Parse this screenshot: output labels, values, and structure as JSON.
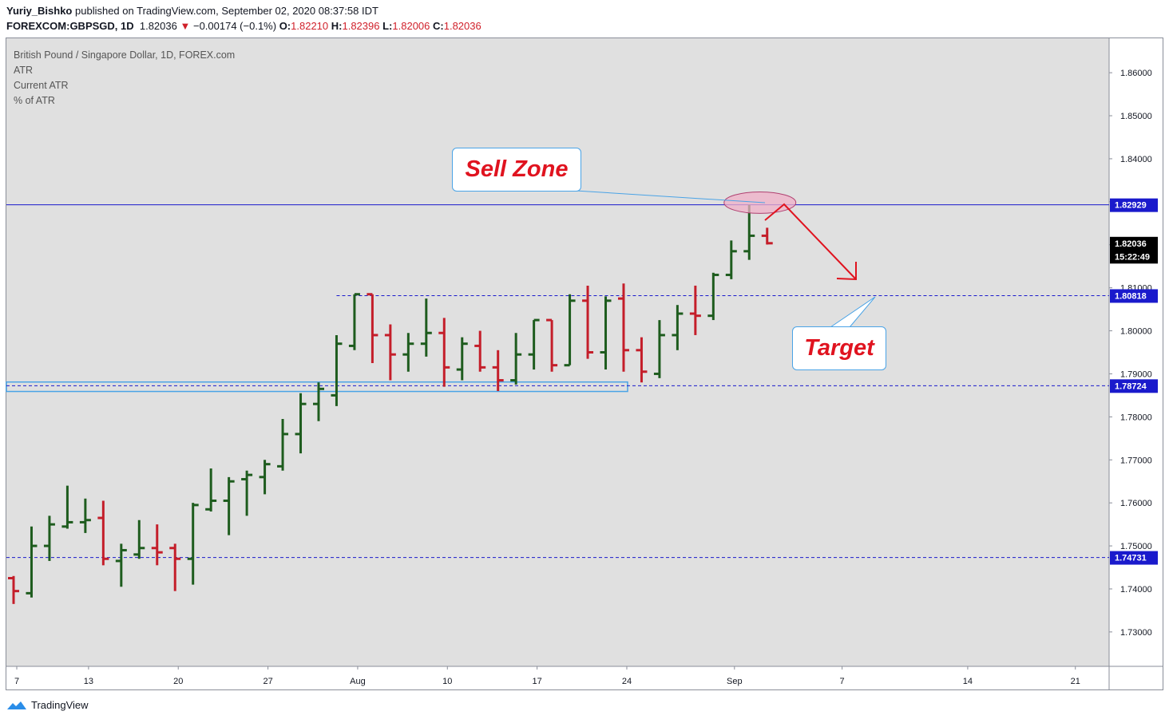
{
  "header": {
    "author": "Yuriy_Bishko",
    "published": "published on TradingView.com, September 02, 2020 08:37:58 IDT",
    "symbol": "FOREXCOM:GBPSGD, 1D",
    "last": "1.82036",
    "change_arrow": "▼",
    "change": "−0.00174 (−0.1%)",
    "o_label": "O:",
    "o": "1.82210",
    "h_label": "H:",
    "h": "1.82396",
    "l_label": "L:",
    "l": "1.82006",
    "c_label": "C:",
    "c": "1.82036"
  },
  "legend": {
    "title": "British Pound / Singapore Dollar, 1D, FOREX.com",
    "line1": "ATR",
    "line2": "Current ATR",
    "line3": "% of ATR"
  },
  "annotations": {
    "sell_zone": "Sell Zone",
    "target": "Target"
  },
  "footer": {
    "brand": "TradingView",
    "logo_icon": "tradingview-logo-icon"
  },
  "colors": {
    "up": "#1e5c1e",
    "down": "#c41e2a",
    "level_line": "#1a1acc",
    "axis_badge": "#1a1acc",
    "accent_red": "#e0131f",
    "chart_bg": "#e0e0e0"
  },
  "chart_data": {
    "type": "ohlc",
    "title": "British Pound / Singapore Dollar, 1D, FOREX.com",
    "ylim": [
      1.722,
      1.868
    ],
    "y_ticks": [
      "1.86000",
      "1.85000",
      "1.84000",
      "1.83000",
      "1.82000",
      "1.81000",
      "1.80000",
      "1.79000",
      "1.78000",
      "1.77000",
      "1.76000",
      "1.75000",
      "1.74000",
      "1.73000"
    ],
    "x_ticks": [
      {
        "label": "7",
        "bar": 0
      },
      {
        "label": "13",
        "bar": 4
      },
      {
        "label": "20",
        "bar": 9
      },
      {
        "label": "27",
        "bar": 14
      },
      {
        "label": "Aug",
        "bar": 19
      },
      {
        "label": "10",
        "bar": 24
      },
      {
        "label": "17",
        "bar": 29
      },
      {
        "label": "24",
        "bar": 34
      },
      {
        "label": "Sep",
        "bar": 40
      },
      {
        "label": "7",
        "bar": 46
      },
      {
        "label": "14",
        "bar": 53
      },
      {
        "label": "21",
        "bar": 59
      }
    ],
    "price_labels": [
      {
        "value": 1.82929,
        "text": "1.82929",
        "style": "blue"
      },
      {
        "value": 1.82036,
        "text": "1.82036",
        "style": "black"
      },
      {
        "value": 1.8173,
        "text": "15:22:49",
        "style": "black"
      },
      {
        "value": 1.80818,
        "text": "1.80818",
        "style": "blue"
      },
      {
        "value": 1.78724,
        "text": "1.78724",
        "style": "blue"
      },
      {
        "value": 1.74731,
        "text": "1.74731",
        "style": "blue"
      }
    ],
    "levels": [
      {
        "value": 1.82929,
        "style": "solid"
      },
      {
        "value": 1.80818,
        "style": "dashed",
        "from_bar": 18
      },
      {
        "value": 1.78724,
        "style": "dashed"
      },
      {
        "value": 1.74731,
        "style": "dashed"
      }
    ],
    "support_zone": {
      "y_high": 1.7881,
      "y_low": 1.7859,
      "to_bar": 34
    },
    "sell_zone_ellipse": {
      "bar": 41.6,
      "y": 1.8298,
      "bar_radius": 2.0,
      "y_radius": 0.0025
    },
    "bars": [
      {
        "d": "Jul 06",
        "o": 1.7425,
        "h": 1.743,
        "l": 1.7365,
        "c": 1.7395
      },
      {
        "d": "Jul 07",
        "o": 1.739,
        "h": 1.7545,
        "l": 1.738,
        "c": 1.75
      },
      {
        "d": "Jul 08",
        "o": 1.75,
        "h": 1.757,
        "l": 1.7465,
        "c": 1.755
      },
      {
        "d": "Jul 09",
        "o": 1.7545,
        "h": 1.764,
        "l": 1.754,
        "c": 1.7555
      },
      {
        "d": "Jul 10",
        "o": 1.7555,
        "h": 1.761,
        "l": 1.753,
        "c": 1.756
      },
      {
        "d": "Jul 13",
        "o": 1.7565,
        "h": 1.7605,
        "l": 1.7455,
        "c": 1.747
      },
      {
        "d": "Jul 14",
        "o": 1.7465,
        "h": 1.7505,
        "l": 1.7405,
        "c": 1.749
      },
      {
        "d": "Jul 15",
        "o": 1.748,
        "h": 1.756,
        "l": 1.747,
        "c": 1.7495
      },
      {
        "d": "Jul 16",
        "o": 1.7495,
        "h": 1.755,
        "l": 1.7455,
        "c": 1.7485
      },
      {
        "d": "Jul 17",
        "o": 1.7495,
        "h": 1.7505,
        "l": 1.7395,
        "c": 1.747
      },
      {
        "d": "Jul 20",
        "o": 1.747,
        "h": 1.76,
        "l": 1.741,
        "c": 1.7595
      },
      {
        "d": "Jul 21",
        "o": 1.7585,
        "h": 1.768,
        "l": 1.758,
        "c": 1.7605
      },
      {
        "d": "Jul 22",
        "o": 1.7605,
        "h": 1.766,
        "l": 1.7525,
        "c": 1.765
      },
      {
        "d": "Jul 23",
        "o": 1.7655,
        "h": 1.7675,
        "l": 1.757,
        "c": 1.7665
      },
      {
        "d": "Jul 24",
        "o": 1.766,
        "h": 1.77,
        "l": 1.762,
        "c": 1.769
      },
      {
        "d": "Jul 27",
        "o": 1.7685,
        "h": 1.7795,
        "l": 1.7675,
        "c": 1.776
      },
      {
        "d": "Jul 28",
        "o": 1.776,
        "h": 1.7855,
        "l": 1.7715,
        "c": 1.783
      },
      {
        "d": "Jul 29",
        "o": 1.783,
        "h": 1.788,
        "l": 1.779,
        "c": 1.7865
      },
      {
        "d": "Jul 30",
        "o": 1.785,
        "h": 1.799,
        "l": 1.7825,
        "c": 1.797
      },
      {
        "d": "Jul 31",
        "o": 1.7965,
        "h": 1.8085,
        "l": 1.7955,
        "c": 1.8085
      },
      {
        "d": "Aug 03",
        "o": 1.8085,
        "h": 1.8085,
        "l": 1.7925,
        "c": 1.799
      },
      {
        "d": "Aug 04",
        "o": 1.799,
        "h": 1.8015,
        "l": 1.7885,
        "c": 1.7945
      },
      {
        "d": "Aug 05",
        "o": 1.7945,
        "h": 1.7995,
        "l": 1.7905,
        "c": 1.797
      },
      {
        "d": "Aug 06",
        "o": 1.797,
        "h": 1.8075,
        "l": 1.794,
        "c": 1.7995
      },
      {
        "d": "Aug 07",
        "o": 1.7995,
        "h": 1.803,
        "l": 1.787,
        "c": 1.7915
      },
      {
        "d": "Aug 10",
        "o": 1.791,
        "h": 1.7985,
        "l": 1.7885,
        "c": 1.797
      },
      {
        "d": "Aug 11",
        "o": 1.7965,
        "h": 1.8,
        "l": 1.7905,
        "c": 1.7915
      },
      {
        "d": "Aug 12",
        "o": 1.7915,
        "h": 1.7955,
        "l": 1.786,
        "c": 1.7885
      },
      {
        "d": "Aug 13",
        "o": 1.7885,
        "h": 1.7995,
        "l": 1.7875,
        "c": 1.7945
      },
      {
        "d": "Aug 14",
        "o": 1.7945,
        "h": 1.8025,
        "l": 1.791,
        "c": 1.8025
      },
      {
        "d": "Aug 17",
        "o": 1.8025,
        "h": 1.8025,
        "l": 1.7905,
        "c": 1.792
      },
      {
        "d": "Aug 18",
        "o": 1.792,
        "h": 1.8085,
        "l": 1.792,
        "c": 1.807
      },
      {
        "d": "Aug 19",
        "o": 1.807,
        "h": 1.8105,
        "l": 1.7935,
        "c": 1.795
      },
      {
        "d": "Aug 20",
        "o": 1.795,
        "h": 1.808,
        "l": 1.791,
        "c": 1.807
      },
      {
        "d": "Aug 21",
        "o": 1.8075,
        "h": 1.811,
        "l": 1.7905,
        "c": 1.7955
      },
      {
        "d": "Aug 24",
        "o": 1.7955,
        "h": 1.7985,
        "l": 1.788,
        "c": 1.7905
      },
      {
        "d": "Aug 25",
        "o": 1.79,
        "h": 1.8025,
        "l": 1.789,
        "c": 1.799
      },
      {
        "d": "Aug 26",
        "o": 1.799,
        "h": 1.806,
        "l": 1.7955,
        "c": 1.804
      },
      {
        "d": "Aug 27",
        "o": 1.804,
        "h": 1.8105,
        "l": 1.799,
        "c": 1.8035
      },
      {
        "d": "Aug 28",
        "o": 1.8035,
        "h": 1.8135,
        "l": 1.8025,
        "c": 1.813
      },
      {
        "d": "Aug 31",
        "o": 1.813,
        "h": 1.821,
        "l": 1.812,
        "c": 1.8185
      },
      {
        "d": "Sep 01",
        "o": 1.8185,
        "h": 1.82929,
        "l": 1.8165,
        "c": 1.8221
      },
      {
        "d": "Sep 02",
        "o": 1.8221,
        "h": 1.82396,
        "l": 1.82006,
        "c": 1.82036
      }
    ]
  }
}
